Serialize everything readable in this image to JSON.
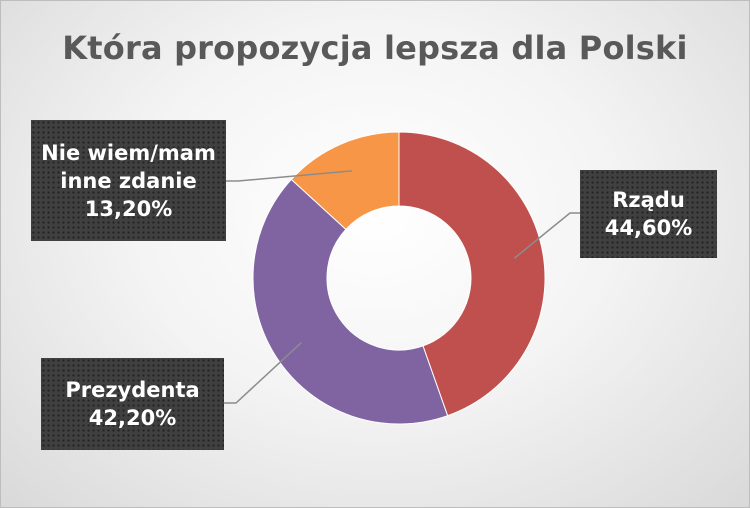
{
  "chart_data": {
    "type": "pie",
    "title": "Która propozycja lepsza dla Polski",
    "categories": [
      "Rządu",
      "Prezydenta",
      "Nie wiem/mam inne zdanie"
    ],
    "values": [
      44.6,
      42.2,
      13.2
    ],
    "value_labels": [
      "44,60%",
      "42,20%",
      "13,20%"
    ],
    "label_lines": [
      [
        "Rządu",
        "44,60%"
      ],
      [
        "Prezydenta",
        "42,20%"
      ],
      [
        "Nie wiem/mam",
        "inne zdanie",
        "13,20%"
      ]
    ],
    "colors": [
      "#c0504d",
      "#8064a2",
      "#f79646"
    ],
    "donut": true,
    "legend": "none"
  }
}
